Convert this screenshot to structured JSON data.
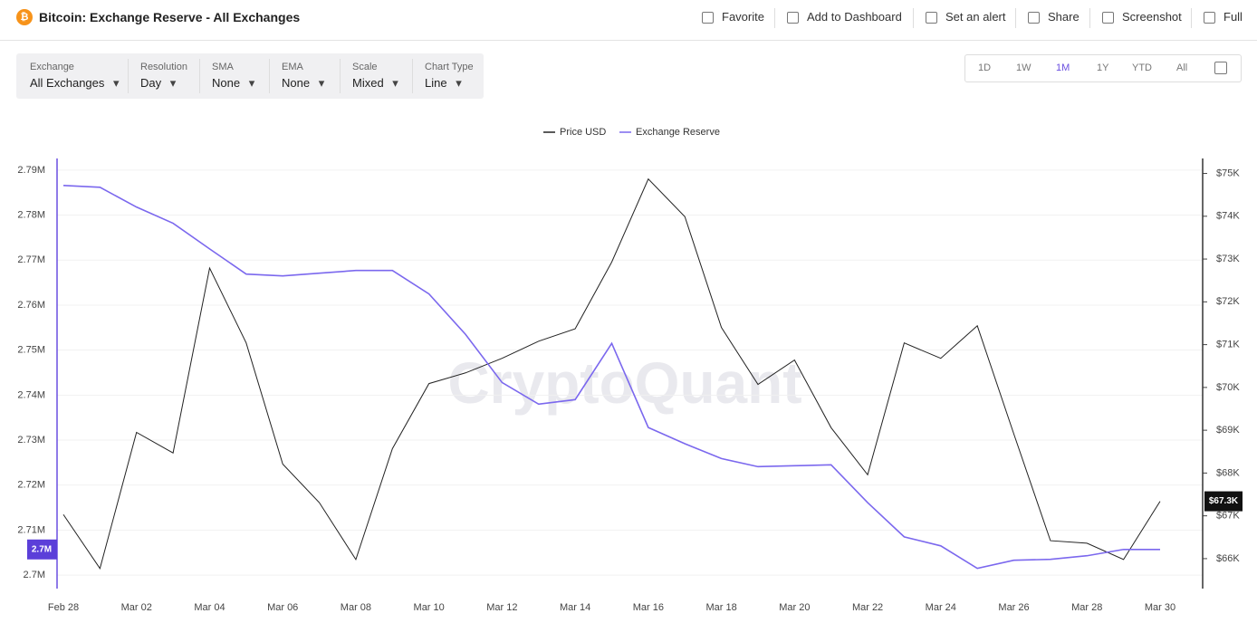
{
  "header": {
    "title": "Bitcoin: Exchange Reserve - All Exchanges",
    "actions": [
      "Favorite",
      "Add to Dashboard",
      "Set an alert",
      "Share",
      "Screenshot",
      "Full"
    ]
  },
  "filters": [
    {
      "label": "Exchange",
      "value": "All Exchanges"
    },
    {
      "label": "Resolution",
      "value": "Day"
    },
    {
      "label": "SMA",
      "value": "None"
    },
    {
      "label": "EMA",
      "value": "None"
    },
    {
      "label": "Scale",
      "value": "Mixed"
    },
    {
      "label": "Chart Type",
      "value": "Line"
    }
  ],
  "ranges": {
    "items": [
      "1D",
      "1W",
      "1M",
      "1Y",
      "YTD",
      "All"
    ],
    "active": "1M"
  },
  "chart_data": {
    "type": "line",
    "watermark": "CryptoQuant",
    "grid": true,
    "categories": [
      "Feb 28",
      null,
      "Mar 02",
      null,
      "Mar 04",
      null,
      "Mar 06",
      null,
      "Mar 08",
      null,
      "Mar 10",
      null,
      "Mar 12",
      null,
      "Mar 14",
      null,
      "Mar 16",
      null,
      "Mar 18",
      null,
      "Mar 20",
      null,
      "Mar 22",
      null,
      "Mar 24",
      null,
      "Mar 26",
      null,
      "Mar 28",
      null,
      "Mar 30"
    ],
    "series": [
      {
        "name": "Price USD",
        "color": "#222222",
        "axis": "y2",
        "current_label": "$67.3K",
        "values": [
          67030,
          65770,
          68950,
          68470,
          72790,
          71040,
          68210,
          67310,
          65980,
          68570,
          70090,
          70340,
          70680,
          71080,
          71370,
          72930,
          74870,
          73990,
          71400,
          70070,
          70640,
          69060,
          67960,
          71040,
          70680,
          71440,
          68910,
          66420,
          66360,
          65980,
          67340
        ]
      },
      {
        "name": "Exchange Reserve",
        "color": "#7b68ee",
        "current_label": "2.7M",
        "values": [
          2786600,
          2786200,
          2781800,
          2778200,
          2772500,
          2766900,
          2766500,
          2767100,
          2767700,
          2767700,
          2762500,
          2753500,
          2742800,
          2738000,
          2739000,
          2751500,
          2732800,
          2729200,
          2725900,
          2724100,
          2724300,
          2724500,
          2716100,
          2708500,
          2706500,
          2701500,
          2703300,
          2703500,
          2704300,
          2705700,
          2705700
        ]
      }
    ],
    "ylim": [
      2697000,
      2792600
    ],
    "yticks": [
      {
        "value": 2700000,
        "label": "2.7M"
      },
      {
        "value": 2710000,
        "label": "2.71M"
      },
      {
        "value": 2720000,
        "label": "2.72M"
      },
      {
        "value": 2730000,
        "label": "2.73M"
      },
      {
        "value": 2740000,
        "label": "2.74M"
      },
      {
        "value": 2750000,
        "label": "2.75M"
      },
      {
        "value": 2760000,
        "label": "2.76M"
      },
      {
        "value": 2770000,
        "label": "2.77M"
      },
      {
        "value": 2780000,
        "label": "2.78M"
      },
      {
        "value": 2790000,
        "label": "2.79M"
      }
    ],
    "y2lim": [
      65300,
      75350
    ],
    "y2ticks": [
      {
        "value": 66000,
        "label": "$66K"
      },
      {
        "value": 67000,
        "label": "$67K"
      },
      {
        "value": 68000,
        "label": "$68K"
      },
      {
        "value": 69000,
        "label": "$69K"
      },
      {
        "value": 70000,
        "label": "$70K"
      },
      {
        "value": 71000,
        "label": "$71K"
      },
      {
        "value": 72000,
        "label": "$72K"
      },
      {
        "value": 73000,
        "label": "$73K"
      },
      {
        "value": 74000,
        "label": "$74K"
      },
      {
        "value": 75000,
        "label": "$75K"
      }
    ]
  }
}
